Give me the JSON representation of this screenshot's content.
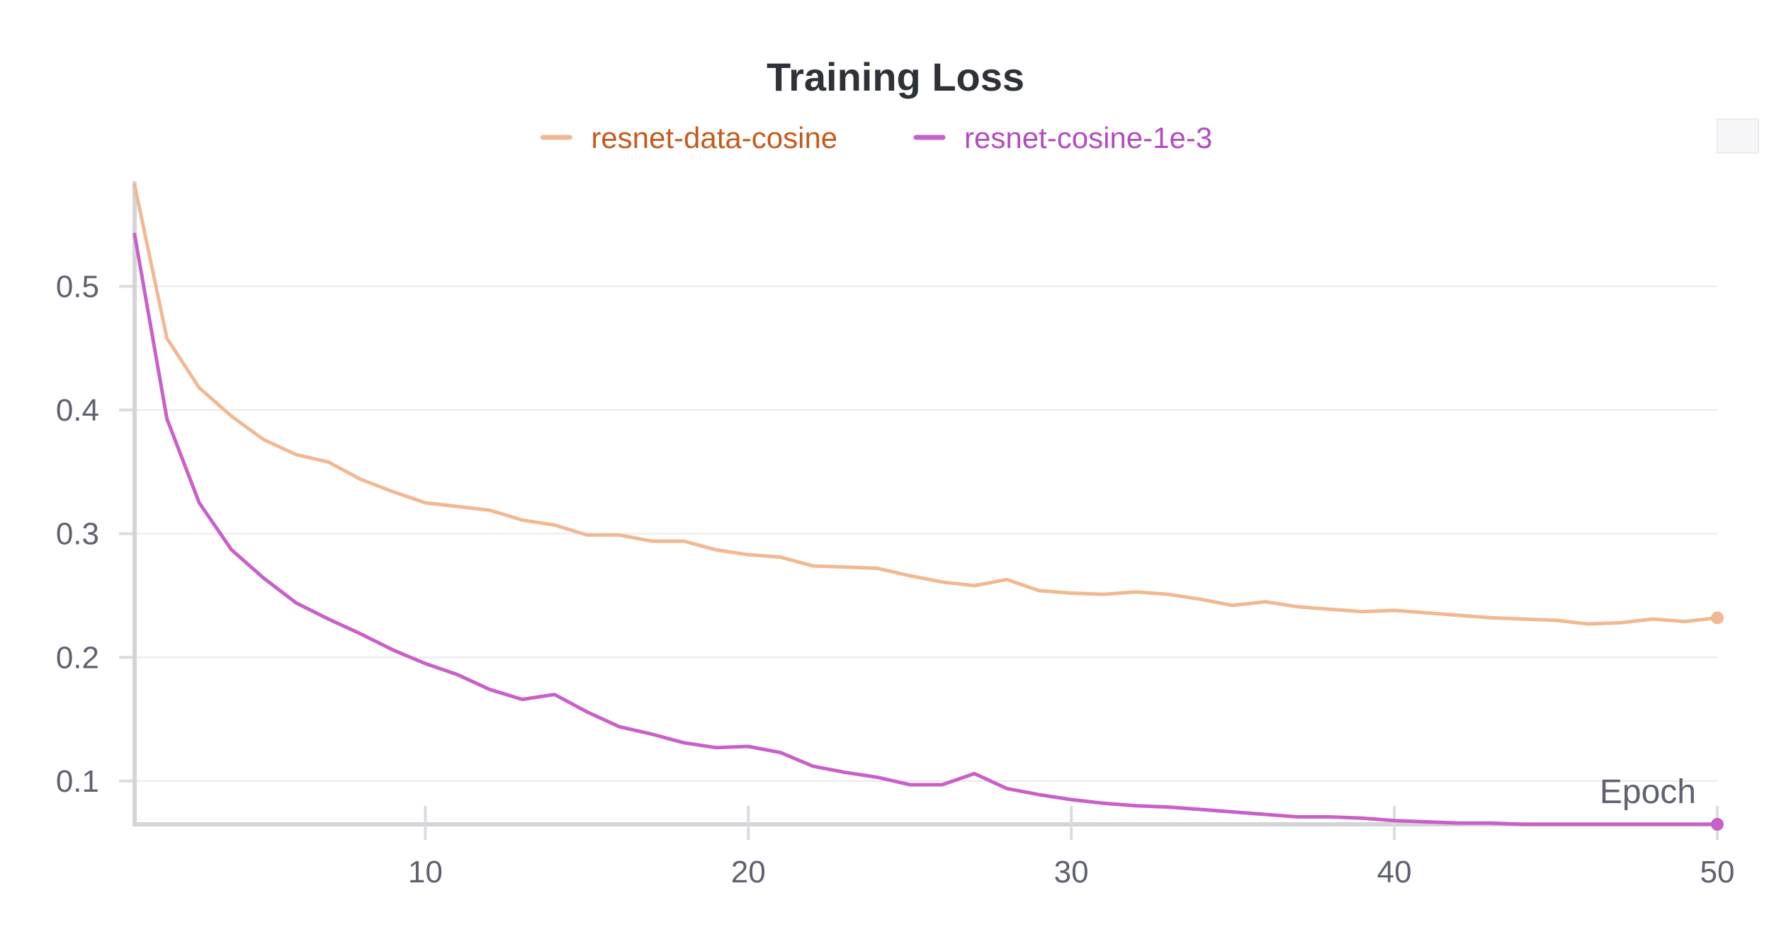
{
  "chart_data": {
    "type": "line",
    "title": "Training Loss",
    "xlabel": "Epoch",
    "ylabel": "",
    "xlim": [
      1,
      50
    ],
    "ylim": [
      0.065,
      0.585
    ],
    "x_ticks": [
      10,
      20,
      30,
      40,
      50
    ],
    "y_ticks": [
      0.1,
      0.2,
      0.3,
      0.4,
      0.5
    ],
    "grid": true,
    "legend_position": "top-center",
    "x": [
      1,
      2,
      3,
      4,
      5,
      6,
      7,
      8,
      9,
      10,
      11,
      12,
      13,
      14,
      15,
      16,
      17,
      18,
      19,
      20,
      21,
      22,
      23,
      24,
      25,
      26,
      27,
      28,
      29,
      30,
      31,
      32,
      33,
      34,
      35,
      36,
      37,
      38,
      39,
      40,
      41,
      42,
      43,
      44,
      45,
      46,
      47,
      48,
      49,
      50
    ],
    "series": [
      {
        "name": "resnet-data-cosine",
        "color": "#f2b894",
        "legend_text_color": "#c55a1c",
        "values": [
          0.582,
          0.458,
          0.418,
          0.395,
          0.376,
          0.364,
          0.358,
          0.344,
          0.334,
          0.325,
          0.322,
          0.319,
          0.311,
          0.307,
          0.299,
          0.299,
          0.294,
          0.294,
          0.287,
          0.283,
          0.281,
          0.274,
          0.273,
          0.272,
          0.266,
          0.261,
          0.258,
          0.263,
          0.254,
          0.252,
          0.251,
          0.253,
          0.251,
          0.247,
          0.242,
          0.245,
          0.241,
          0.239,
          0.237,
          0.238,
          0.236,
          0.234,
          0.232,
          0.231,
          0.23,
          0.227,
          0.228,
          0.231,
          0.229,
          0.232
        ]
      },
      {
        "name": "resnet-cosine-1e-3",
        "color": "#c95fc9",
        "legend_text_color": "#b44cc0",
        "values": [
          0.542,
          0.393,
          0.325,
          0.287,
          0.264,
          0.244,
          0.231,
          0.219,
          0.206,
          0.195,
          0.186,
          0.174,
          0.166,
          0.17,
          0.156,
          0.144,
          0.138,
          0.131,
          0.127,
          0.128,
          0.123,
          0.112,
          0.107,
          0.103,
          0.097,
          0.097,
          0.106,
          0.094,
          0.089,
          0.085,
          0.082,
          0.08,
          0.079,
          0.077,
          0.075,
          0.073,
          0.071,
          0.071,
          0.07,
          0.068,
          0.067,
          0.066,
          0.066,
          0.065,
          0.065,
          0.065,
          0.065,
          0.065,
          0.065,
          0.065
        ]
      }
    ]
  }
}
